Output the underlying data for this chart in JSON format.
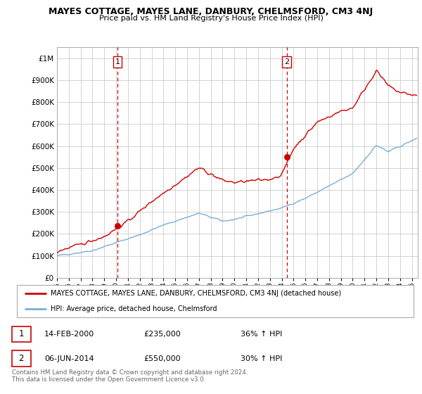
{
  "title": "MAYES COTTAGE, MAYES LANE, DANBURY, CHELMSFORD, CM3 4NJ",
  "subtitle": "Price paid vs. HM Land Registry's House Price Index (HPI)",
  "legend_label_red": "MAYES COTTAGE, MAYES LANE, DANBURY, CHELMSFORD, CM3 4NJ (detached house)",
  "legend_label_blue": "HPI: Average price, detached house, Chelmsford",
  "footer": "Contains HM Land Registry data © Crown copyright and database right 2024.\nThis data is licensed under the Open Government Licence v3.0.",
  "transaction1": {
    "label": "1",
    "date": "14-FEB-2000",
    "price": "£235,000",
    "change": "36% ↑ HPI"
  },
  "transaction2": {
    "label": "2",
    "date": "06-JUN-2014",
    "price": "£550,000",
    "change": "30% ↑ HPI"
  },
  "vline1_year": 2000.12,
  "vline2_year": 2014.43,
  "red_color": "#cc0000",
  "blue_color": "#7aaed6",
  "vline_color": "#cc0000",
  "background_color": "#ffffff",
  "grid_color": "#cccccc",
  "ylim": [
    0,
    1050000
  ],
  "xlim_start": 1995.0,
  "xlim_end": 2025.5
}
